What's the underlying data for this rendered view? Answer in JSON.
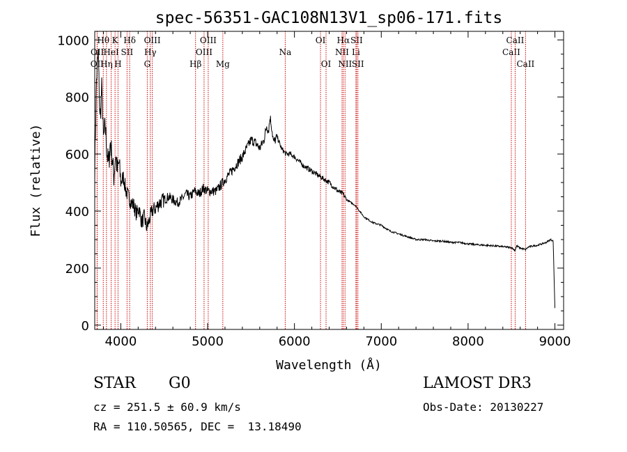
{
  "chart_data": {
    "type": "line",
    "title": "spec-56351-GAC108N13V1_sp06-171.fits",
    "xlabel": "Wavelength (Å)",
    "ylabel": "Flux (relative)",
    "xlim": [
      3700,
      9100
    ],
    "ylim": [
      -15,
      1030
    ],
    "x_ticks": [
      4000,
      5000,
      6000,
      7000,
      8000,
      9000
    ],
    "y_ticks": [
      0,
      200,
      400,
      600,
      800,
      1000
    ],
    "grid": false,
    "series": [
      {
        "name": "flux",
        "x": [
          3700,
          3720,
          3740,
          3760,
          3780,
          3800,
          3820,
          3840,
          3860,
          3880,
          3900,
          3920,
          3940,
          3960,
          3980,
          4000,
          4030,
          4060,
          4090,
          4120,
          4150,
          4180,
          4210,
          4240,
          4270,
          4300,
          4330,
          4360,
          4400,
          4450,
          4500,
          4550,
          4600,
          4650,
          4700,
          4750,
          4800,
          4850,
          4900,
          4950,
          5000,
          5050,
          5100,
          5150,
          5200,
          5250,
          5300,
          5350,
          5400,
          5450,
          5500,
          5550,
          5600,
          5650,
          5680,
          5700,
          5720,
          5740,
          5760,
          5800,
          5850,
          5900,
          5950,
          6000,
          6100,
          6200,
          6300,
          6400,
          6500,
          6560,
          6600,
          6700,
          6800,
          6900,
          7000,
          7100,
          7200,
          7300,
          7400,
          7500,
          7600,
          7700,
          7800,
          7900,
          8000,
          8100,
          8200,
          8300,
          8400,
          8500,
          8540,
          8560,
          8600,
          8660,
          8700,
          8800,
          8900,
          8950,
          8980,
          9000
        ],
        "y": [
          550,
          860,
          950,
          720,
          830,
          650,
          700,
          610,
          560,
          640,
          590,
          520,
          600,
          540,
          570,
          500,
          520,
          470,
          450,
          430,
          420,
          390,
          410,
          360,
          380,
          340,
          370,
          400,
          410,
          430,
          440,
          450,
          440,
          430,
          440,
          460,
          450,
          470,
          460,
          480,
          470,
          470,
          470,
          490,
          510,
          530,
          550,
          570,
          590,
          620,
          650,
          640,
          620,
          650,
          700,
          680,
          730,
          690,
          640,
          660,
          620,
          600,
          600,
          590,
          560,
          540,
          520,
          500,
          470,
          460,
          440,
          420,
          380,
          360,
          350,
          330,
          320,
          310,
          300,
          300,
          295,
          295,
          290,
          290,
          285,
          282,
          280,
          278,
          275,
          272,
          262,
          278,
          270,
          265,
          275,
          280,
          290,
          300,
          295,
          60
        ]
      }
    ],
    "spectral_lines": [
      {
        "label": "OII",
        "wavelength": 3727,
        "row": 2
      },
      {
        "label": "Hθ",
        "wavelength": 3798,
        "row": 0
      },
      {
        "label": "OII",
        "wavelength": 3729,
        "row": 1
      },
      {
        "label": "Hη",
        "wavelength": 3835,
        "row": 2
      },
      {
        "label": "HeI",
        "wavelength": 3889,
        "row": 1
      },
      {
        "label": "K",
        "wavelength": 3934,
        "row": 0
      },
      {
        "label": "H",
        "wavelength": 3968,
        "row": 2
      },
      {
        "label": "SII",
        "wavelength": 4072,
        "row": 1
      },
      {
        "label": "Hδ",
        "wavelength": 4102,
        "row": 0
      },
      {
        "label": "G",
        "wavelength": 4305,
        "row": 2
      },
      {
        "label": "Hγ",
        "wavelength": 4340,
        "row": 1
      },
      {
        "label": "OIII",
        "wavelength": 4363,
        "row": 0
      },
      {
        "label": "Hβ",
        "wavelength": 4861,
        "row": 2
      },
      {
        "label": "OIII",
        "wavelength": 4959,
        "row": 1
      },
      {
        "label": "OIII",
        "wavelength": 5007,
        "row": 0
      },
      {
        "label": "Mg",
        "wavelength": 5175,
        "row": 2
      },
      {
        "label": "Na",
        "wavelength": 5894,
        "row": 1
      },
      {
        "label": "OI",
        "wavelength": 6300,
        "row": 0
      },
      {
        "label": "OI",
        "wavelength": 6364,
        "row": 2
      },
      {
        "label": "NII",
        "wavelength": 6548,
        "row": 1
      },
      {
        "label": "Hα",
        "wavelength": 6563,
        "row": 0
      },
      {
        "label": "NII",
        "wavelength": 6583,
        "row": 2
      },
      {
        "label": "Li",
        "wavelength": 6708,
        "row": 1
      },
      {
        "label": "SII",
        "wavelength": 6716,
        "row": 0
      },
      {
        "label": "SII",
        "wavelength": 6731,
        "row": 2
      },
      {
        "label": "CaII",
        "wavelength": 8498,
        "row": 1
      },
      {
        "label": "CaII",
        "wavelength": 8542,
        "row": 0
      },
      {
        "label": "CaII",
        "wavelength": 8662,
        "row": 2
      }
    ],
    "line_color": "#cc0000",
    "series_color": "#000000"
  },
  "info": {
    "class_label": "STAR",
    "subclass": "G0",
    "redshift": "cz = 251.5 ± 60.9 km/s",
    "coords": "RA = 110.50565, DEC =  13.18490",
    "survey": "LAMOST DR3",
    "obs_date": "Obs-Date: 20130227"
  }
}
